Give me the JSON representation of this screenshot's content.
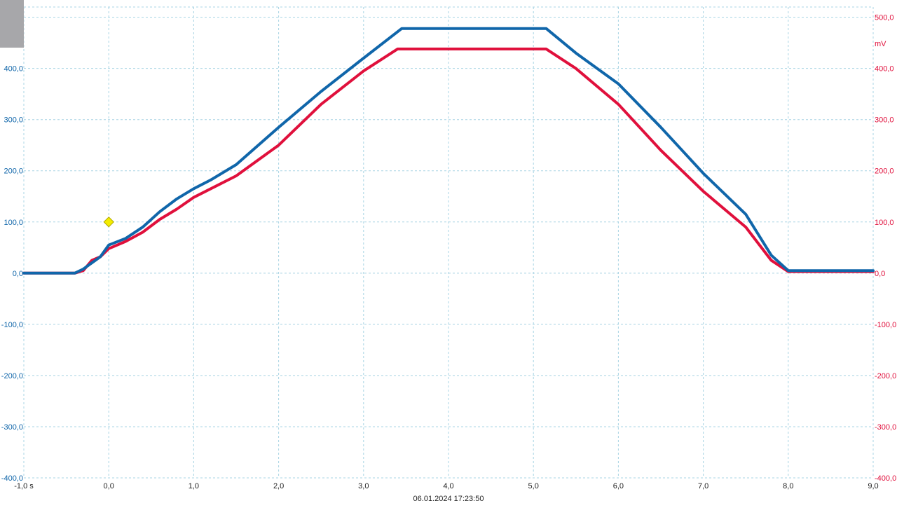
{
  "colors": {
    "ch_a": "#1066aa",
    "ch_b": "#e0103c",
    "grid": "#a8d4e4",
    "trigger": "#f4ec00"
  },
  "left_axis": {
    "unit": "mV"
  },
  "right_axis": {
    "unit": "mV"
  },
  "timestamp": "06.01.2024 17:23:50",
  "chart_data": {
    "type": "line",
    "xlim": [
      -1.0,
      9.0
    ],
    "ylim": [
      -400,
      520
    ],
    "grid": true,
    "xticks": [
      {
        "v": -1.0,
        "label": "-1,0 s"
      },
      {
        "v": 0.0,
        "label": "0,0"
      },
      {
        "v": 1.0,
        "label": "1,0"
      },
      {
        "v": 2.0,
        "label": "2,0"
      },
      {
        "v": 3.0,
        "label": "3,0"
      },
      {
        "v": 4.0,
        "label": "4,0"
      },
      {
        "v": 5.0,
        "label": "5,0"
      },
      {
        "v": 6.0,
        "label": "6,0"
      },
      {
        "v": 7.0,
        "label": "7,0"
      },
      {
        "v": 8.0,
        "label": "8,0"
      },
      {
        "v": 9.0,
        "label": "9,0"
      }
    ],
    "yticks": [
      {
        "v": 500,
        "label": "500,0"
      },
      {
        "v": 400,
        "label": "400,0"
      },
      {
        "v": 300,
        "label": "300,0"
      },
      {
        "v": 200,
        "label": "200,0"
      },
      {
        "v": 100,
        "label": "100,0"
      },
      {
        "v": 0,
        "label": "0,0"
      },
      {
        "v": -100,
        "label": "-100,0"
      },
      {
        "v": -200,
        "label": "-200,0"
      },
      {
        "v": -300,
        "label": "-300,0"
      },
      {
        "v": -400,
        "label": "-400,0"
      }
    ],
    "trigger_marker": {
      "x": 0.0,
      "y": 100
    },
    "series": [
      {
        "color": "#1066aa",
        "points": [
          [
            -1.0,
            0
          ],
          [
            -0.4,
            0
          ],
          [
            -0.3,
            8
          ],
          [
            -0.2,
            20
          ],
          [
            -0.1,
            32
          ],
          [
            0.0,
            55
          ],
          [
            0.2,
            68
          ],
          [
            0.4,
            90
          ],
          [
            0.6,
            120
          ],
          [
            0.8,
            145
          ],
          [
            1.0,
            165
          ],
          [
            1.2,
            182
          ],
          [
            1.5,
            212
          ],
          [
            2.0,
            285
          ],
          [
            2.5,
            355
          ],
          [
            3.0,
            420
          ],
          [
            3.45,
            478
          ],
          [
            4.0,
            478
          ],
          [
            5.15,
            478
          ],
          [
            5.5,
            430
          ],
          [
            6.0,
            370
          ],
          [
            6.5,
            285
          ],
          [
            7.0,
            195
          ],
          [
            7.5,
            115
          ],
          [
            7.8,
            35
          ],
          [
            8.0,
            5
          ],
          [
            9.0,
            5
          ]
        ]
      },
      {
        "color": "#e0103c",
        "points": [
          [
            -1.0,
            0
          ],
          [
            -0.4,
            0
          ],
          [
            -0.3,
            5
          ],
          [
            -0.2,
            25
          ],
          [
            -0.1,
            32
          ],
          [
            0.0,
            48
          ],
          [
            0.2,
            62
          ],
          [
            0.4,
            80
          ],
          [
            0.6,
            105
          ],
          [
            0.8,
            125
          ],
          [
            1.0,
            148
          ],
          [
            1.5,
            190
          ],
          [
            2.0,
            250
          ],
          [
            2.5,
            330
          ],
          [
            3.0,
            395
          ],
          [
            3.4,
            438
          ],
          [
            4.0,
            438
          ],
          [
            5.15,
            438
          ],
          [
            5.5,
            400
          ],
          [
            6.0,
            330
          ],
          [
            6.5,
            240
          ],
          [
            7.0,
            160
          ],
          [
            7.5,
            90
          ],
          [
            7.8,
            25
          ],
          [
            8.0,
            3
          ],
          [
            9.0,
            3
          ]
        ]
      }
    ]
  }
}
